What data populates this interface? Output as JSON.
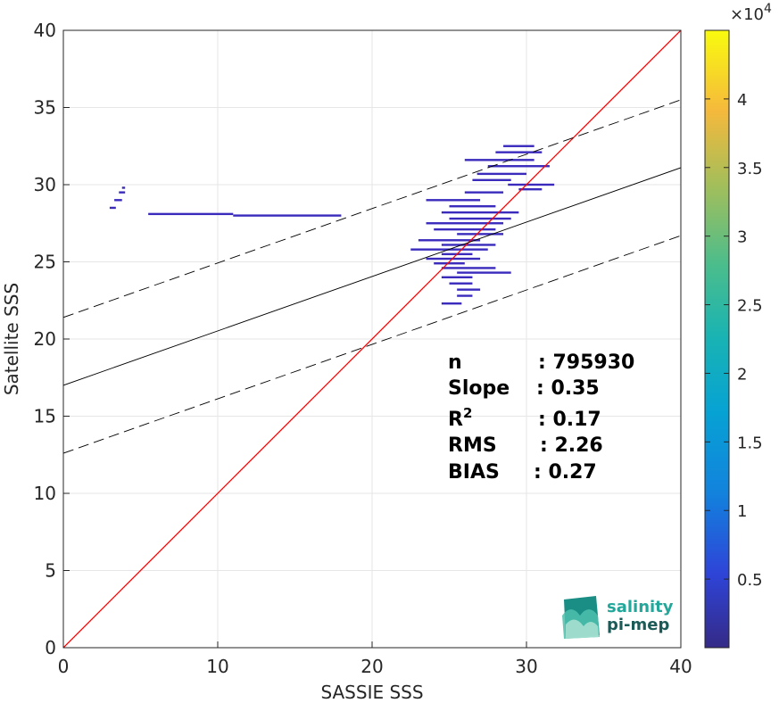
{
  "chart_data": {
    "type": "scatter",
    "xlabel": "SASSIE SSS",
    "ylabel": "Satellite SSS",
    "xlim": [
      0,
      40
    ],
    "ylim": [
      0,
      40
    ],
    "xticks": [
      "0",
      "10",
      "20",
      "30",
      "40"
    ],
    "yticks": [
      "0",
      "5",
      "10",
      "15",
      "20",
      "25",
      "30",
      "35",
      "40"
    ],
    "grid": true,
    "colorbar": {
      "range": [
        0,
        45000
      ],
      "ticks": [
        "0.5",
        "1",
        "1.5",
        "2",
        "2.5",
        "3",
        "3.5",
        "4"
      ],
      "tick_values": [
        5000,
        10000,
        15000,
        20000,
        25000,
        30000,
        35000,
        40000
      ],
      "exponent_label": "×10",
      "exponent_power": "4",
      "colormap": "parula"
    },
    "lines": [
      {
        "name": "one-to-one",
        "color": "#ff0000",
        "x": [
          0,
          40
        ],
        "y": [
          0,
          40
        ],
        "style": "solid"
      },
      {
        "name": "regression",
        "color": "#000000",
        "x": [
          0,
          40
        ],
        "y": [
          17.0,
          31.1
        ],
        "style": "solid"
      },
      {
        "name": "regression-upper",
        "color": "#000000",
        "x": [
          0,
          40
        ],
        "y": [
          21.4,
          35.5
        ],
        "style": "dashed"
      },
      {
        "name": "regression-lower",
        "color": "#000000",
        "x": [
          0,
          40
        ],
        "y": [
          12.6,
          26.7
        ],
        "style": "dashed"
      }
    ],
    "density_segments": [
      {
        "x": [
          5.5,
          11
        ],
        "y": 28.1
      },
      {
        "x": [
          11,
          18
        ],
        "y": 28.0
      },
      {
        "x": [
          3,
          3.4
        ],
        "y": 28.5
      },
      {
        "x": [
          3.3,
          3.8
        ],
        "y": 29.0
      },
      {
        "x": [
          3.6,
          4.0
        ],
        "y": 29.5
      },
      {
        "x": [
          3.8,
          4.0
        ],
        "y": 29.8
      },
      {
        "x": [
          28.5,
          30.5
        ],
        "y": 32.5
      },
      {
        "x": [
          28.0,
          31.0
        ],
        "y": 32.1
      },
      {
        "x": [
          26.0,
          30.5
        ],
        "y": 31.6
      },
      {
        "x": [
          27.5,
          31.5
        ],
        "y": 31.2
      },
      {
        "x": [
          26.8,
          30.0
        ],
        "y": 30.7
      },
      {
        "x": [
          26.5,
          29.0
        ],
        "y": 30.3
      },
      {
        "x": [
          28.8,
          31.8
        ],
        "y": 30.0
      },
      {
        "x": [
          29.5,
          31.0
        ],
        "y": 29.7
      },
      {
        "x": [
          26.0,
          28.5
        ],
        "y": 29.5
      },
      {
        "x": [
          23.5,
          27.0
        ],
        "y": 29.0
      },
      {
        "x": [
          25.0,
          28.0
        ],
        "y": 28.6
      },
      {
        "x": [
          24.5,
          29.5
        ],
        "y": 28.2
      },
      {
        "x": [
          25.0,
          29.0
        ],
        "y": 27.8
      },
      {
        "x": [
          23.5,
          28.5
        ],
        "y": 27.5
      },
      {
        "x": [
          24.0,
          28.0
        ],
        "y": 27.1
      },
      {
        "x": [
          25.5,
          28.5
        ],
        "y": 26.8
      },
      {
        "x": [
          23.0,
          27.0
        ],
        "y": 26.4
      },
      {
        "x": [
          24.5,
          28.0
        ],
        "y": 26.1
      },
      {
        "x": [
          22.5,
          27.5
        ],
        "y": 25.8
      },
      {
        "x": [
          24.5,
          26.5
        ],
        "y": 25.5
      },
      {
        "x": [
          23.5,
          27.0
        ],
        "y": 25.2
      },
      {
        "x": [
          24.0,
          26.0
        ],
        "y": 24.9
      },
      {
        "x": [
          24.5,
          28.0
        ],
        "y": 24.6
      },
      {
        "x": [
          25.5,
          29.0
        ],
        "y": 24.3
      },
      {
        "x": [
          24.5,
          26.5
        ],
        "y": 24.0
      },
      {
        "x": [
          25.0,
          26.5
        ],
        "y": 23.6
      },
      {
        "x": [
          25.5,
          27.0
        ],
        "y": 23.2
      },
      {
        "x": [
          25.5,
          26.5
        ],
        "y": 22.8
      },
      {
        "x": [
          24.5,
          25.8
        ],
        "y": 22.3
      }
    ],
    "stats": [
      {
        "label": "n",
        "value": ": 795930"
      },
      {
        "label": "Slope",
        "value": ": 0.35"
      },
      {
        "label": "R",
        "sup": "2",
        "value": ": 0.17"
      },
      {
        "label": "RMS",
        "value": ": 2.26"
      },
      {
        "label": "BIAS",
        "value": ": 0.27"
      }
    ]
  },
  "logo": {
    "line1": "salinity",
    "line2": "pi-mep"
  }
}
